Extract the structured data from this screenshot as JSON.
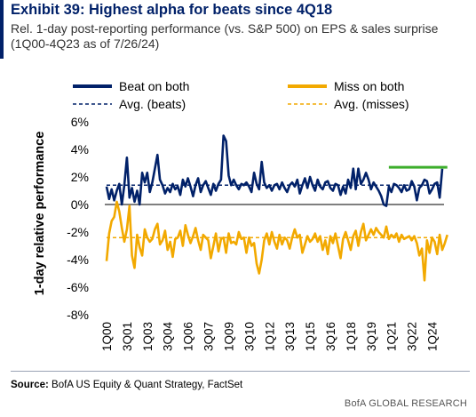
{
  "header": {
    "title": "Exhibit 39: Highest alpha for beats since 4Q18",
    "subtitle": "Rel. 1-day post-reporting performance (vs. S&P 500) on EPS & sales surprise (1Q00-4Q23 as of 7/26/24)"
  },
  "footer": {
    "source_label": "Source:",
    "source_text": "BofA US Equity & Quant Strategy, FactSet",
    "brand": "BofA GLOBAL RESEARCH"
  },
  "colors": {
    "beat": "#012169",
    "miss": "#F2A900",
    "highlight": "#3DAE2B",
    "zero_line": "#555555",
    "title": "#012169"
  },
  "chart_data": {
    "type": "line",
    "ylabel": "1-day relative performance",
    "ylim": [
      -8,
      6
    ],
    "yticks": [
      6,
      4,
      2,
      0,
      -2,
      -4,
      -6,
      -8
    ],
    "ytick_labels": [
      "6%",
      "4%",
      "2%",
      "0%",
      "-2%",
      "-4%",
      "-6%",
      "-8%"
    ],
    "x_tick_labels": [
      "1Q00",
      "3Q01",
      "1Q03",
      "3Q04",
      "1Q06",
      "3Q07",
      "1Q09",
      "3Q10",
      "1Q12",
      "3Q13",
      "1Q15",
      "3Q16",
      "1Q18",
      "3Q19",
      "1Q21",
      "3Q22",
      "1Q24"
    ],
    "grid": false,
    "legend": [
      {
        "label": "Beat on both",
        "style": "solid",
        "color": "#012169"
      },
      {
        "label": "Miss on both",
        "style": "solid",
        "color": "#F2A900"
      },
      {
        "label": "Avg. (beats)",
        "style": "dashed",
        "color": "#012169"
      },
      {
        "label": "Avg. (misses)",
        "style": "dashed",
        "color": "#F2A900"
      }
    ],
    "series": [
      {
        "name": "Beat on both",
        "values": [
          1.3,
          0.4,
          1.1,
          0.3,
          1.0,
          1.5,
          0.0,
          1.4,
          3.4,
          0.5,
          1.2,
          0.2,
          1.0,
          0.0,
          2.3,
          1.6,
          2.3,
          0.9,
          1.6,
          2.6,
          3.6,
          1.8,
          1.4,
          0.8,
          1.2,
          0.9,
          1.5,
          1.1,
          1.3,
          0.7,
          1.8,
          1.3,
          1.9,
          1.3,
          0.6,
          1.4,
          1.9,
          0.9,
          1.4,
          1.7,
          1.2,
          0.7,
          1.5,
          1.0,
          1.5,
          1.8,
          5.0,
          4.6,
          2.1,
          1.4,
          1.8,
          1.4,
          1.1,
          1.5,
          1.4,
          1.6,
          1.3,
          0.9,
          2.3,
          1.5,
          1.1,
          3.1,
          1.6,
          1.2,
          1.4,
          1.0,
          1.4,
          1.5,
          1.1,
          1.6,
          1.2,
          0.9,
          1.4,
          1.6,
          1.3,
          1.8,
          0.8,
          1.4,
          1.9,
          1.2,
          2.0,
          1.4,
          1.0,
          1.8,
          1.3,
          1.1,
          1.6,
          1.7,
          1.2,
          1.0,
          1.5,
          1.4,
          0.7,
          1.3,
          0.8,
          1.8,
          1.2,
          2.6,
          1.1,
          2.6,
          1.5,
          1.8,
          2.3,
          1.8,
          1.1,
          1.6,
          1.3,
          1.0,
          0.6,
          0.0,
          -0.1,
          1.3,
          0.9,
          1.5,
          1.4,
          1.2,
          0.9,
          1.4,
          1.0,
          1.1,
          1.7,
          1.3,
          0.3,
          1.2,
          1.4,
          1.8,
          1.7,
          0.8,
          1.1,
          1.5,
          1.6,
          0.5,
          2.6
        ]
      },
      {
        "name": "Miss on both",
        "values": [
          -4.1,
          -2.1,
          -1.2,
          -0.9,
          0.2,
          -0.5,
          -1.7,
          -2.7,
          -1.8,
          -0.1,
          -3.7,
          -4.6,
          -2.2,
          -3.1,
          -3.7,
          -1.8,
          -2.4,
          -2.7,
          -2.5,
          -1.8,
          -1.4,
          -2.9,
          -2.6,
          -1.9,
          -3.3,
          -2.7,
          -3.8,
          -2.5,
          -2.4,
          -1.9,
          -3.0,
          -1.5,
          -2.2,
          -2.8,
          -2.3,
          -1.7,
          -2.6,
          -3.3,
          -2.2,
          -2.4,
          -2.6,
          -3.9,
          -3.0,
          -2.1,
          -3.4,
          -2.5,
          -2.4,
          -3.5,
          -2.1,
          -2.8,
          -2.7,
          -2.9,
          -2.0,
          -2.5,
          -2.4,
          -3.5,
          -2.4,
          -3.0,
          -2.8,
          -4.3,
          -5.0,
          -4.0,
          -2.6,
          -2.1,
          -2.9,
          -2.0,
          -2.7,
          -3.2,
          -2.2,
          -2.9,
          -2.4,
          -2.6,
          -3.2,
          -2.4,
          -1.8,
          -2.4,
          -2.2,
          -3.5,
          -2.9,
          -2.3,
          -2.7,
          -2.5,
          -2.1,
          -2.7,
          -2.3,
          -3.3,
          -2.6,
          -3.6,
          -2.3,
          -2.8,
          -2.1,
          -3.0,
          -3.9,
          -2.5,
          -2.0,
          -2.6,
          -3.3,
          -2.3,
          -1.9,
          -3.0,
          -2.0,
          -1.4,
          -2.6,
          -2.2,
          -1.8,
          -2.2,
          -1.7,
          -2.0,
          -2.2,
          -2.4,
          -1.6,
          -2.5,
          -2.2,
          -2.4,
          -2.1,
          -2.7,
          -2.2,
          -2.5,
          -2.4,
          -2.3,
          -2.6,
          -2.3,
          -2.8,
          -3.7,
          -3.2,
          -5.5,
          -2.6,
          -3.5,
          -2.4,
          -2.7,
          -3.6,
          -2.2,
          -3.3,
          -2.8,
          -2.2
        ]
      },
      {
        "name": "Avg. (beats)",
        "value": 1.4
      },
      {
        "name": "Avg. (misses)",
        "value": -2.4
      }
    ],
    "highlight": {
      "from_index": 111,
      "to_index": 134,
      "value": 2.7
    }
  }
}
